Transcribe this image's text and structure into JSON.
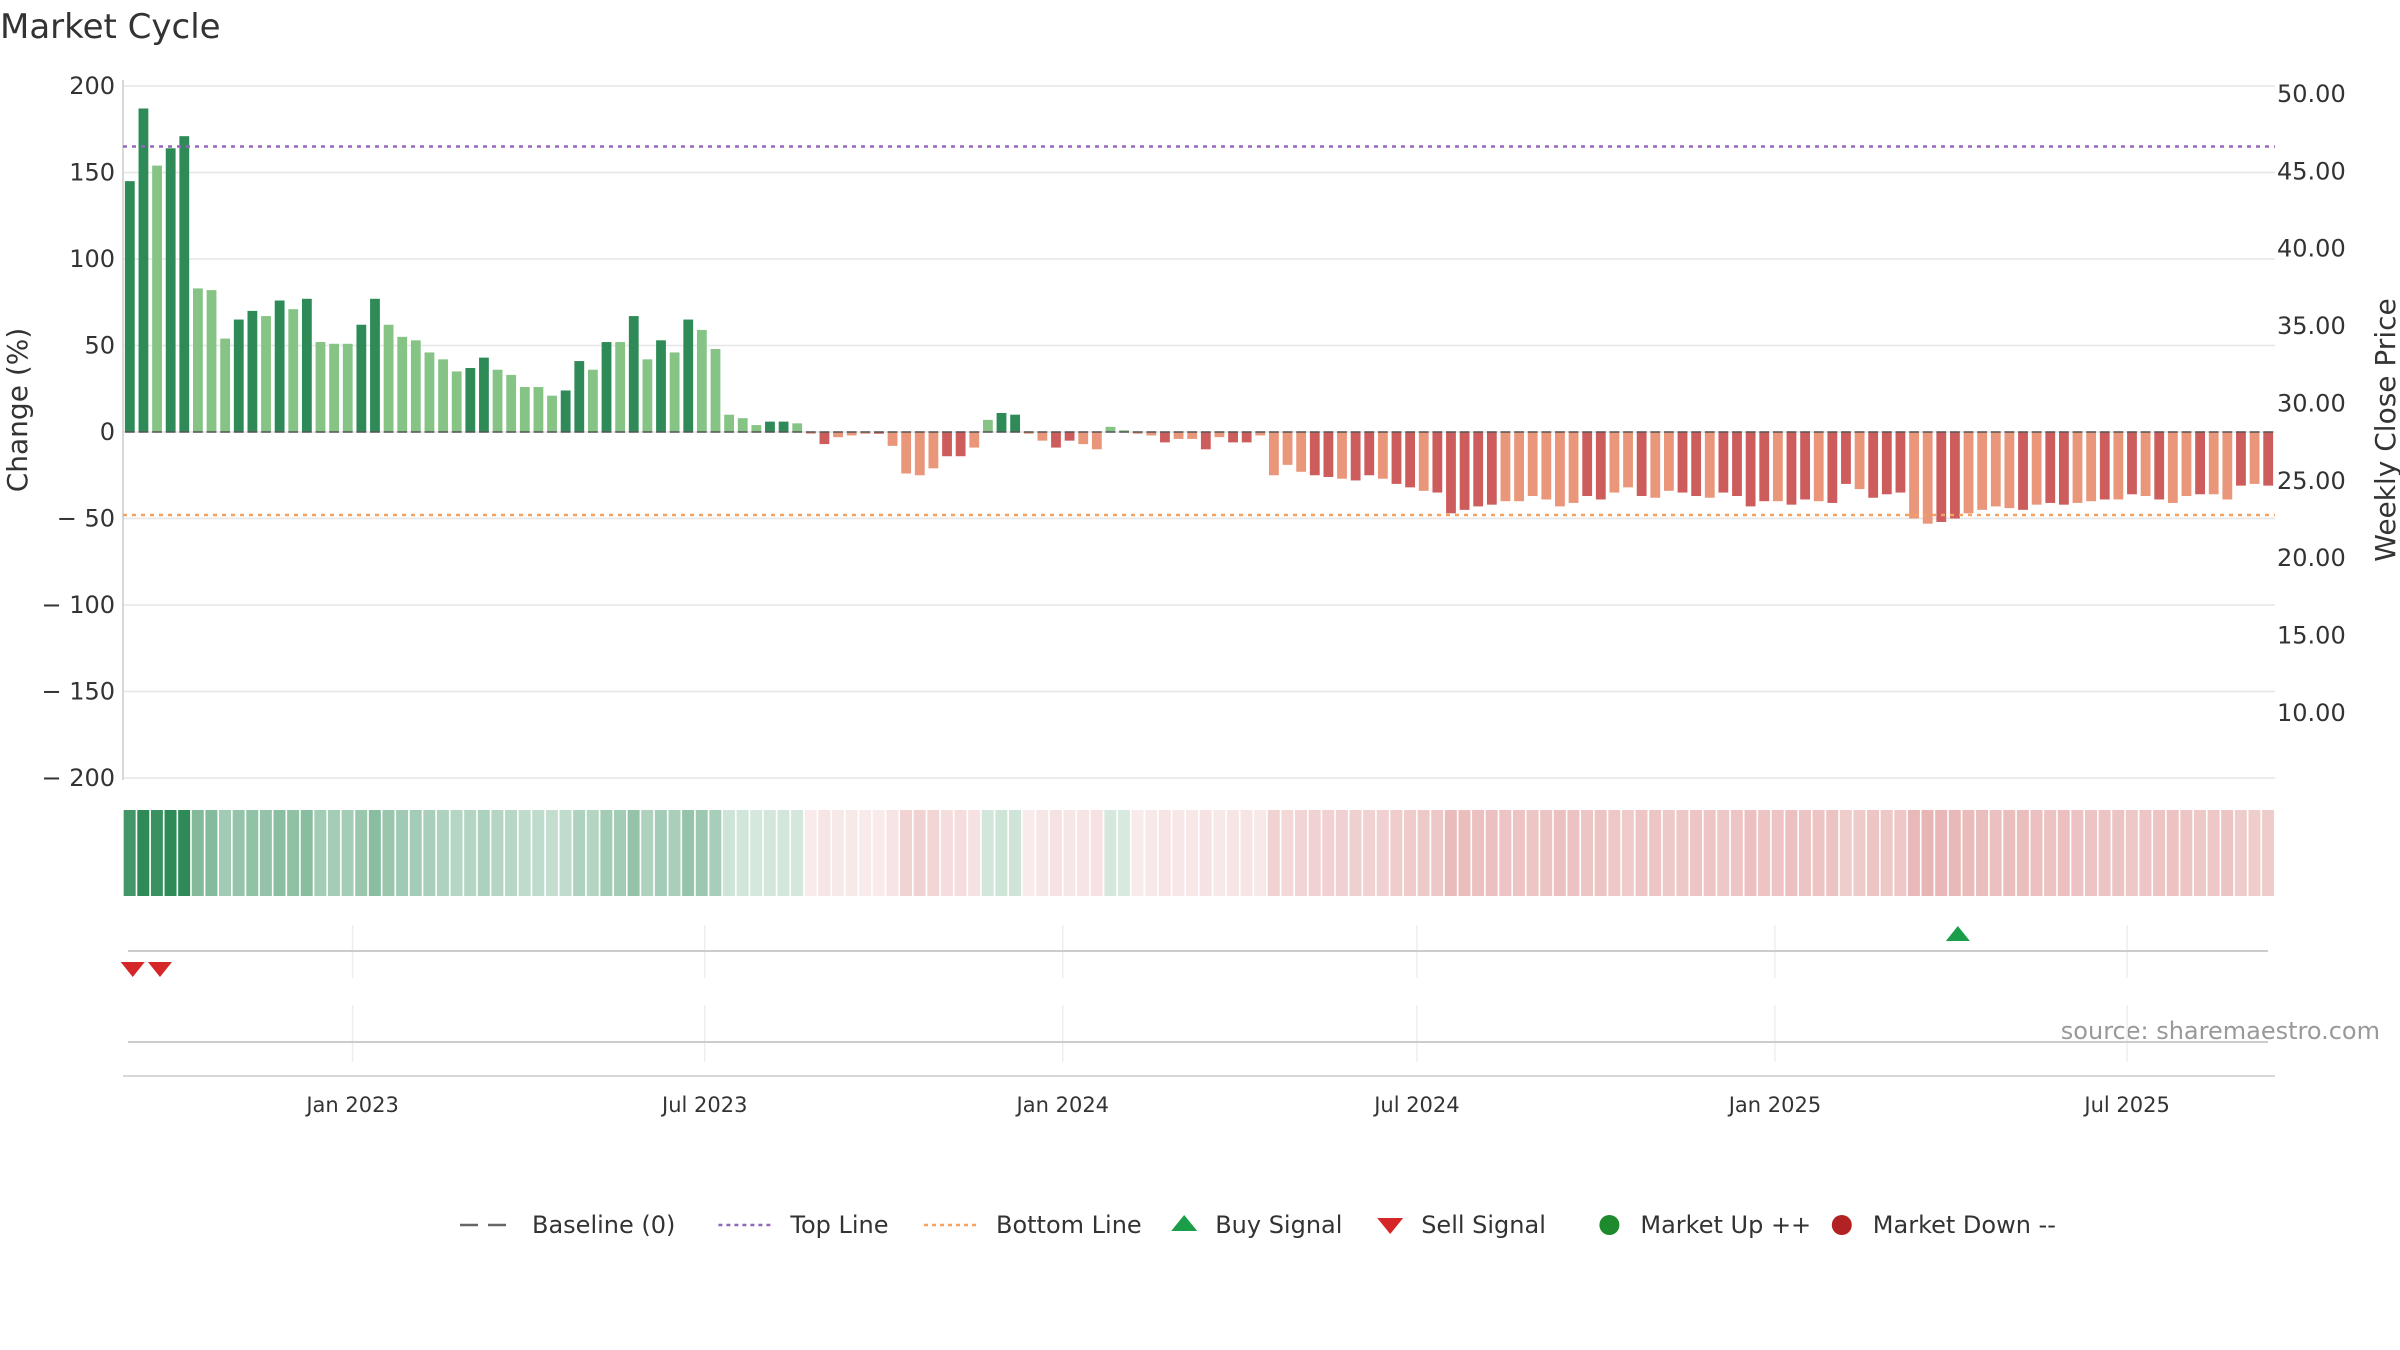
{
  "chart_data": {
    "type": "bar",
    "title": "Market Cycle",
    "ylabel": "Change (%)",
    "ylabel_right": "Weekly Close Price",
    "ylim": [
      -200,
      200
    ],
    "ylim_right": [
      5,
      52.5
    ],
    "yticks": [
      "200",
      "150",
      "100",
      "50",
      "0",
      "− 50",
      "− 100",
      "− 150",
      "− 200"
    ],
    "yticks_values": [
      200,
      150,
      100,
      50,
      0,
      -50,
      -100,
      -150,
      -200
    ],
    "yticks_right": [
      "50.00",
      "45.00",
      "40.00",
      "35.00",
      "30.00",
      "25.00",
      "20.00",
      "15.00",
      "10.00"
    ],
    "yticks_right_values": [
      50,
      45,
      40,
      35,
      30,
      25,
      20,
      15,
      10
    ],
    "x_start": "2022-09-05",
    "x_end": "2025-09-15",
    "xticks": [
      {
        "label": "Jan 2023",
        "date": "2023-01-01"
      },
      {
        "label": "Jul 2023",
        "date": "2023-07-01"
      },
      {
        "label": "Jan 2024",
        "date": "2024-01-01"
      },
      {
        "label": "Jul 2024",
        "date": "2024-07-01"
      },
      {
        "label": "Jan 2025",
        "date": "2025-01-01"
      },
      {
        "label": "Jul 2025",
        "date": "2025-07-01"
      }
    ],
    "grid": true,
    "top_line": 165,
    "bottom_line": -48,
    "baseline": 0,
    "values": [
      145,
      187,
      154,
      164,
      171,
      83,
      82,
      54,
      65,
      70,
      67,
      76,
      71,
      77,
      52,
      51,
      51,
      62,
      77,
      62,
      55,
      53,
      46,
      42,
      35,
      37,
      43,
      36,
      33,
      26,
      26,
      21,
      24,
      41,
      36,
      52,
      52,
      67,
      42,
      53,
      46,
      65,
      59,
      48,
      10,
      8,
      4,
      6,
      6,
      5,
      -1,
      -7,
      -3,
      -2,
      -1,
      -1,
      -8,
      -24,
      -25,
      -21,
      -14,
      -14,
      -9,
      7,
      11,
      10,
      -1,
      -5,
      -9,
      -5,
      -7,
      -10,
      3,
      1,
      -1,
      -2,
      -6,
      -4,
      -4,
      -10,
      -3,
      -6,
      -6,
      -2,
      -25,
      -19,
      -23,
      -25,
      -26,
      -27,
      -28,
      -25,
      -27,
      -30,
      -32,
      -34,
      -35,
      -47,
      -45,
      -43,
      -42,
      -40,
      -40,
      -37,
      -39,
      -43,
      -41,
      -37,
      -39,
      -35,
      -32,
      -37,
      -38,
      -34,
      -35,
      -37,
      -38,
      -35,
      -37,
      -43,
      -40,
      -40,
      -42,
      -39,
      -40,
      -41,
      -30,
      -33,
      -38,
      -36,
      -35,
      -50,
      -53,
      -52,
      -50,
      -47,
      -45,
      -43,
      -44,
      -45,
      -42,
      -41,
      -42,
      -41,
      -40,
      -39,
      -39,
      -36,
      -37,
      -39,
      -41,
      -37,
      -36,
      -36,
      -39,
      -31,
      -30,
      -31
    ],
    "shade": [
      "d",
      "d",
      "l",
      "d",
      "d",
      "l",
      "l",
      "l",
      "d",
      "d",
      "l",
      "d",
      "l",
      "d",
      "l",
      "l",
      "l",
      "d",
      "d",
      "l",
      "l",
      "l",
      "l",
      "l",
      "l",
      "d",
      "d",
      "l",
      "l",
      "l",
      "l",
      "l",
      "d",
      "d",
      "l",
      "d",
      "l",
      "d",
      "l",
      "d",
      "l",
      "d",
      "l",
      "l",
      "l",
      "l",
      "l",
      "d",
      "d",
      "l",
      "l",
      "d",
      "l",
      "l",
      "l",
      "d",
      "l",
      "l",
      "l",
      "l",
      "d",
      "d",
      "l",
      "l",
      "d",
      "d",
      "l",
      "l",
      "d",
      "d",
      "l",
      "l",
      "l",
      "l",
      "l",
      "l",
      "d",
      "l",
      "l",
      "d",
      "l",
      "d",
      "d",
      "l",
      "l",
      "l",
      "l",
      "d",
      "d",
      "l",
      "d",
      "d",
      "l",
      "d",
      "d",
      "l",
      "d",
      "d",
      "d",
      "d",
      "d",
      "l",
      "l",
      "l",
      "l",
      "l",
      "l",
      "d",
      "d",
      "l",
      "l",
      "d",
      "l",
      "l",
      "d",
      "d",
      "l",
      "d",
      "d",
      "d",
      "d",
      "l",
      "d",
      "d",
      "l",
      "d",
      "d",
      "l",
      "d",
      "d",
      "d",
      "l",
      "l",
      "d",
      "d",
      "l",
      "l",
      "l",
      "l",
      "d",
      "l",
      "d",
      "d",
      "l",
      "l",
      "d",
      "l",
      "d",
      "l",
      "d",
      "l",
      "l",
      "d",
      "l",
      "l",
      "d",
      "l",
      "d",
      "l",
      "l",
      "l",
      "d",
      "l",
      "l",
      "d",
      "l",
      "l",
      "d",
      "l",
      "l"
    ],
    "sell_signals": [
      "2022-09-10",
      "2022-09-24"
    ],
    "buy_signals": [
      "2025-04-05"
    ],
    "legend": [
      {
        "label": "Baseline (0)",
        "marker": "dash",
        "color": "#666666"
      },
      {
        "label": "Top Line",
        "marker": "dotted",
        "color": "#9467bd"
      },
      {
        "label": "Bottom Line",
        "marker": "dotted",
        "color": "#f4a261"
      },
      {
        "label": "Buy Signal",
        "marker": "triangle-up",
        "color": "#1a9e4a"
      },
      {
        "label": "Sell Signal",
        "marker": "triangle-down",
        "color": "#d62728"
      },
      {
        "label": "Market Up ++",
        "marker": "circle",
        "color": "#1e8a2e"
      },
      {
        "label": "Market Down --",
        "marker": "circle",
        "color": "#b22222"
      }
    ],
    "legend_position": "bottom"
  },
  "source": "source: sharemaestro.com",
  "colors": {
    "pos_dark": "#2e8b57",
    "pos_light": "#86c486",
    "neg_dark": "#cd5c5c",
    "neg_light": "#e9967a",
    "top_line": "#9467bd",
    "bottom_line": "#f4a261",
    "grid": "#e6e6e6"
  }
}
